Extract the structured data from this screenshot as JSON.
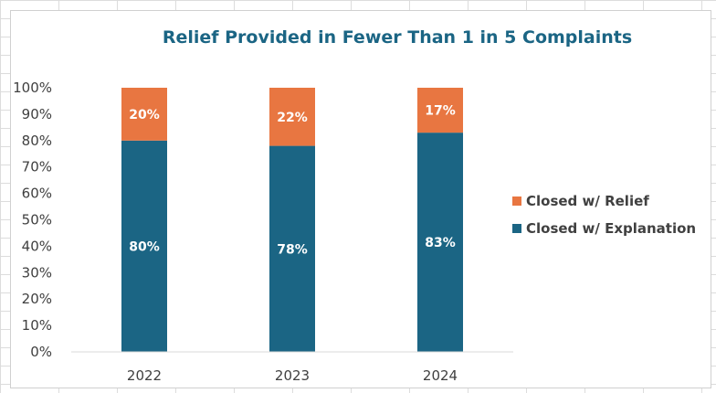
{
  "chart_data": {
    "type": "bar",
    "stacked": true,
    "title": "Relief Provided in Fewer Than 1 in 5 Complaints",
    "xlabel": "",
    "ylabel": "",
    "ylim": [
      0,
      100
    ],
    "y_ticks": [
      "0%",
      "10%",
      "20%",
      "30%",
      "40%",
      "50%",
      "60%",
      "70%",
      "80%",
      "90%",
      "100%"
    ],
    "categories": [
      "2022",
      "2023",
      "2024"
    ],
    "series": [
      {
        "name": "Closed w/ Explanation",
        "values": [
          80,
          78,
          83
        ],
        "labels": [
          "80%",
          "78%",
          "83%"
        ],
        "color": "#1b6584"
      },
      {
        "name": "Closed w/ Relief",
        "values": [
          20,
          22,
          17
        ],
        "labels": [
          "20%",
          "22%",
          "17%"
        ],
        "color": "#e87641"
      }
    ],
    "legend": {
      "position": "right",
      "order": [
        "Closed w/ Relief",
        "Closed w/ Explanation"
      ]
    },
    "grid": false
  }
}
